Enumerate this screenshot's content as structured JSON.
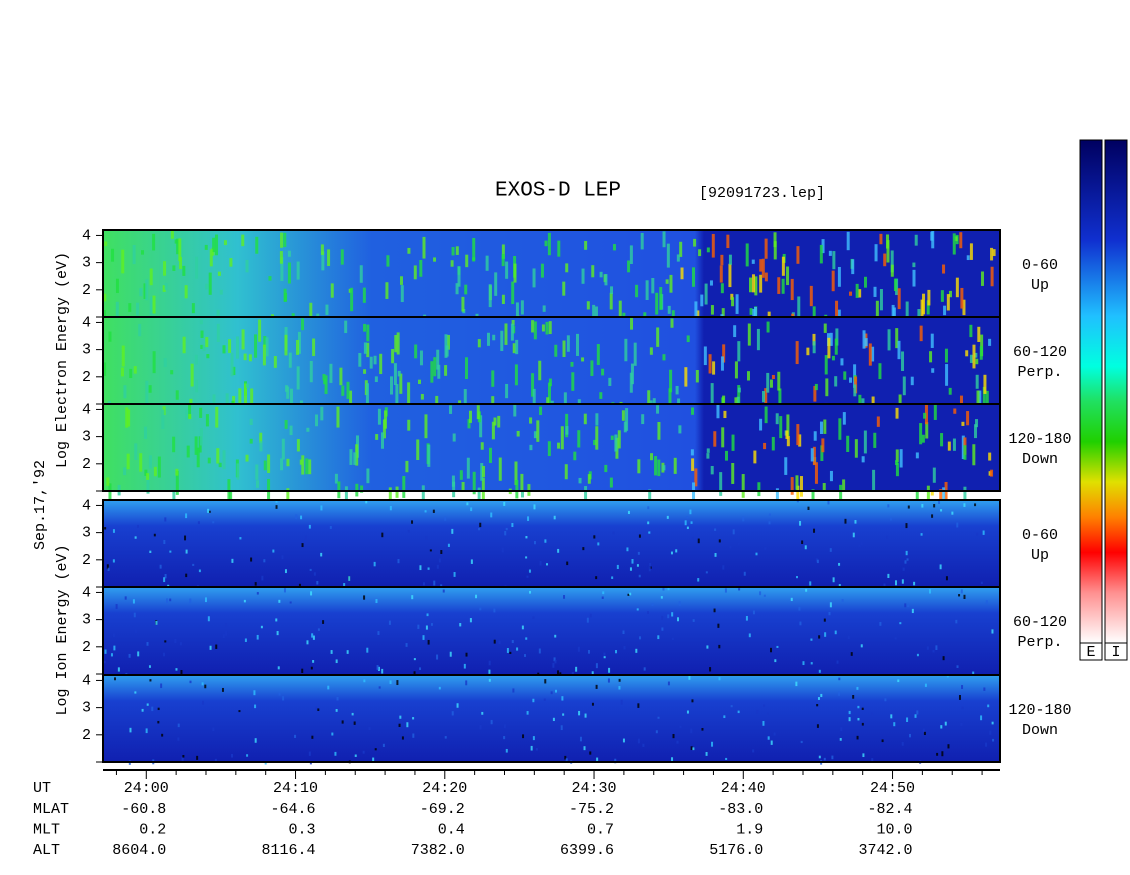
{
  "chart_data": {
    "type": "spectrogram",
    "title": "EXOS-D LEP",
    "file": "[92091723.lep]",
    "date": "Sep.17,'92",
    "electron_axis_label": "Log  Electron  Energy (eV)",
    "ion_axis_label": "Log  Ion  Energy (eV)",
    "panels": [
      {
        "species": "electron",
        "label": "0-60",
        "sublabel": "Up"
      },
      {
        "species": "electron",
        "label": "60-120",
        "sublabel": "Perp."
      },
      {
        "species": "electron",
        "label": "120-180",
        "sublabel": "Down"
      },
      {
        "species": "ion",
        "label": "0-60",
        "sublabel": "Up"
      },
      {
        "species": "ion",
        "label": "60-120",
        "sublabel": "Perp."
      },
      {
        "species": "ion",
        "label": "120-180",
        "sublabel": "Down"
      }
    ],
    "ylim": [
      1,
      4.2
    ],
    "yticks": [
      2,
      3,
      4
    ],
    "x_label": "UT",
    "xlim": [
      -2.9,
      57.2
    ],
    "xticks": [
      {
        "value": 0,
        "label": "24:00"
      },
      {
        "value": 10,
        "label": "24:10"
      },
      {
        "value": 20,
        "label": "24:20"
      },
      {
        "value": 30,
        "label": "24:30"
      },
      {
        "value": 40,
        "label": "24:40"
      },
      {
        "value": 50,
        "label": "24:50"
      }
    ],
    "orbit_rows": [
      {
        "name": "MLAT",
        "values": [
          "-60.8",
          "-64.6",
          "-69.2",
          "-75.2",
          "-83.0",
          "-82.4"
        ]
      },
      {
        "name": "MLT",
        "values": [
          "0.2",
          "0.3",
          "0.4",
          "0.7",
          "1.9",
          "10.0"
        ]
      },
      {
        "name": "ALT",
        "values": [
          "8604.0",
          "8116.4",
          "7382.0",
          "6399.6",
          "5176.0",
          "3742.0"
        ]
      }
    ],
    "colorbars": [
      "E",
      "I"
    ]
  }
}
